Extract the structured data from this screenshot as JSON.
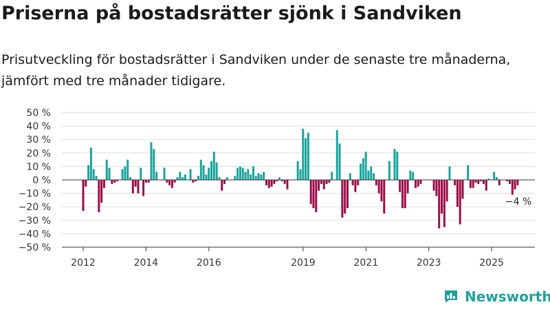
{
  "header": {
    "title": "Priserna på bostadsrätter sjönk i Sandviken",
    "subtitle": "Prisutveckling för bostadsrätter i Sandviken under de senaste tre månaderna, jämfört med tre månader tidigare."
  },
  "brand": {
    "name": "Newsworthy"
  },
  "colors": {
    "positive": "#1aa39b",
    "negative": "#9c0a45",
    "grid": "#dddddd",
    "zero": "#333333",
    "brand": "#20a09a"
  },
  "chart_data": {
    "type": "bar",
    "ylim": [
      -50,
      50
    ],
    "yticks": [
      -50,
      -40,
      -30,
      -20,
      -10,
      0,
      10,
      20,
      30,
      40,
      50
    ],
    "ytick_labels": [
      "−50 %",
      "−40 %",
      "−30 %",
      "−20 %",
      "−10 %",
      "0 %",
      "10 %",
      "20 %",
      "30 %",
      "40 %",
      "50 %"
    ],
    "xticks": [
      {
        "year": 2012,
        "label": "2012"
      },
      {
        "year": 2014,
        "label": "2014"
      },
      {
        "year": 2016,
        "label": "2016"
      },
      {
        "year": 2019,
        "label": "2019"
      },
      {
        "year": 2021,
        "label": "2021"
      },
      {
        "year": 2023,
        "label": "2023"
      },
      {
        "year": 2025,
        "label": "2025"
      }
    ],
    "x_start": 2012.0,
    "x_step": 0.0833,
    "values": [
      -23,
      -5,
      11,
      24,
      8,
      3,
      -24,
      -17,
      -6,
      15,
      9,
      -3,
      -2,
      -1,
      0,
      8,
      10,
      15,
      2,
      -10,
      -5,
      -10,
      9,
      -12,
      -2,
      -2,
      28,
      23,
      6,
      0,
      0,
      9,
      -2,
      -4,
      -6,
      -2,
      2,
      6,
      2,
      4,
      0,
      8,
      -2,
      -1,
      3,
      15,
      11,
      4,
      9,
      14,
      21,
      13,
      2,
      -8,
      -3,
      2,
      0,
      0,
      3,
      9,
      10,
      9,
      6,
      8,
      4,
      10,
      3,
      5,
      4,
      6,
      -4,
      -6,
      -5,
      -3,
      -1,
      2,
      -1,
      -3,
      -7,
      0,
      0,
      0,
      14,
      8,
      38,
      31,
      35,
      -18,
      -21,
      -24,
      -8,
      -3,
      -7,
      -3,
      -2,
      6,
      0,
      37,
      27,
      -28,
      -25,
      -21,
      5,
      -4,
      -9,
      -4,
      12,
      16,
      21,
      7,
      10,
      5,
      -4,
      -10,
      -16,
      -25,
      0,
      14,
      0,
      23,
      21,
      -9,
      -21,
      -21,
      -10,
      7,
      6,
      -6,
      -5,
      -3,
      0,
      0,
      0,
      0,
      -8,
      -12,
      -36,
      -25,
      -35,
      -16,
      10,
      0,
      -4,
      -20,
      -33,
      -14,
      0,
      11,
      -6,
      -6,
      -2,
      -3,
      -1,
      -3,
      -8,
      1,
      0,
      6,
      2,
      -4,
      0,
      0,
      -1,
      -3,
      -11,
      -7,
      -4
    ],
    "annotation": {
      "label": "−4 %",
      "value": -4
    }
  }
}
